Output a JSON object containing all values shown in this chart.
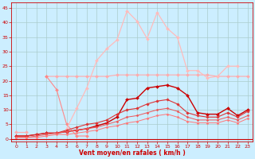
{
  "x": [
    0,
    1,
    2,
    3,
    4,
    5,
    6,
    7,
    8,
    9,
    10,
    11,
    12,
    13,
    14,
    15,
    16,
    17,
    18,
    19,
    20,
    21,
    22,
    23
  ],
  "series": [
    {
      "color": "#ffaaaa",
      "linewidth": 0.8,
      "marker": "D",
      "markersize": 2.0,
      "values": [
        2.5,
        2.5,
        null,
        null,
        null,
        null,
        null,
        null,
        null,
        null,
        null,
        null,
        null,
        null,
        null,
        null,
        null,
        null,
        null,
        null,
        null,
        null,
        null,
        null
      ]
    },
    {
      "color": "#ffaaaa",
      "linewidth": 0.8,
      "marker": "D",
      "markersize": 2.0,
      "values": [
        null,
        null,
        null,
        21.5,
        21.5,
        21.5,
        21.5,
        21.5,
        21.5,
        21.5,
        22.0,
        22.0,
        22.0,
        22.0,
        22.0,
        22.0,
        22.0,
        22.0,
        22.0,
        22.0,
        21.5,
        21.5,
        21.5,
        21.5
      ]
    },
    {
      "color": "#ff8888",
      "linewidth": 0.8,
      "marker": "D",
      "markersize": 2.0,
      "values": [
        null,
        null,
        null,
        21.5,
        17.0,
        5.0,
        1.0,
        1.0,
        null,
        null,
        null,
        null,
        null,
        null,
        null,
        null,
        null,
        null,
        null,
        null,
        null,
        null,
        null,
        null
      ]
    },
    {
      "color": "#ffbbbb",
      "linewidth": 0.9,
      "marker": "D",
      "markersize": 2.0,
      "values": [
        null,
        null,
        null,
        null,
        null,
        3.5,
        10.5,
        17.5,
        27.0,
        31.0,
        34.0,
        44.0,
        40.5,
        34.5,
        43.5,
        38.0,
        35.0,
        23.5,
        23.5,
        21.0,
        21.5,
        25.0,
        25.0,
        null
      ]
    },
    {
      "color": "#cc0000",
      "linewidth": 1.0,
      "marker": "D",
      "markersize": 2.0,
      "values": [
        1.0,
        1.0,
        1.5,
        2.0,
        2.0,
        2.5,
        3.0,
        3.5,
        4.5,
        5.5,
        7.5,
        13.5,
        14.0,
        17.5,
        18.0,
        18.5,
        17.5,
        15.0,
        9.0,
        8.5,
        8.5,
        10.5,
        8.0,
        10.0
      ]
    },
    {
      "color": "#dd3333",
      "linewidth": 0.8,
      "marker": "D",
      "markersize": 1.8,
      "values": [
        1.0,
        1.0,
        1.5,
        2.0,
        2.0,
        3.0,
        4.0,
        5.0,
        5.5,
        6.5,
        8.5,
        10.0,
        10.5,
        12.0,
        13.0,
        13.5,
        12.0,
        9.0,
        8.0,
        7.5,
        7.5,
        9.0,
        7.5,
        9.5
      ]
    },
    {
      "color": "#ee5555",
      "linewidth": 0.7,
      "marker": "D",
      "markersize": 1.5,
      "values": [
        0.5,
        0.5,
        1.0,
        1.5,
        2.0,
        2.5,
        3.0,
        3.5,
        4.0,
        5.0,
        6.0,
        7.5,
        8.0,
        9.0,
        10.0,
        10.5,
        9.5,
        7.5,
        6.5,
        6.5,
        6.5,
        7.5,
        6.5,
        8.0
      ]
    },
    {
      "color": "#ff7777",
      "linewidth": 0.7,
      "marker": "D",
      "markersize": 1.5,
      "values": [
        0.5,
        0.5,
        0.5,
        1.0,
        1.5,
        1.5,
        2.0,
        2.5,
        3.0,
        4.0,
        4.5,
        5.5,
        6.0,
        7.0,
        8.0,
        8.5,
        7.5,
        6.0,
        5.5,
        5.5,
        5.5,
        6.5,
        5.5,
        7.0
      ]
    }
  ],
  "xlim": [
    -0.5,
    23.5
  ],
  "ylim": [
    -1,
    47
  ],
  "yticks": [
    0,
    5,
    10,
    15,
    20,
    25,
    30,
    35,
    40,
    45
  ],
  "xticks": [
    0,
    1,
    2,
    3,
    4,
    5,
    6,
    7,
    8,
    9,
    10,
    11,
    12,
    13,
    14,
    15,
    16,
    17,
    18,
    19,
    20,
    21,
    22,
    23
  ],
  "xlabel": "Vent moyen/en rafales ( km/h )",
  "background_color": "#cceeff",
  "grid_color": "#aacccc",
  "tick_color": "#cc0000",
  "label_color": "#cc0000",
  "axis_color": "#cc0000"
}
